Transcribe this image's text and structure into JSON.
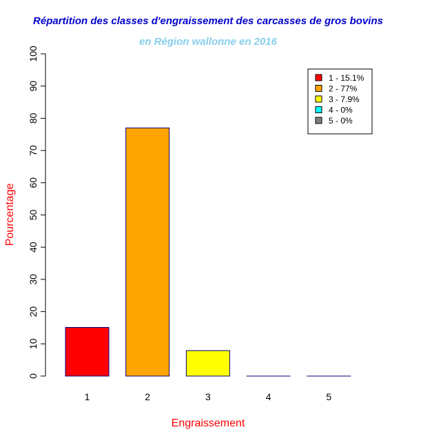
{
  "chart_data": {
    "type": "bar",
    "title": "Répartition des classes d'engraissement des carcasses de gros bovins",
    "subtitle": "en Région wallonne en 2016",
    "xlabel": "Engraissement",
    "ylabel": "Pourcentage",
    "categories": [
      "1",
      "2",
      "3",
      "4",
      "5"
    ],
    "values": [
      15.1,
      77,
      7.9,
      0,
      0
    ],
    "colors": [
      "#ff0000",
      "#ffa500",
      "#ffff00",
      "#00ffff",
      "#808080"
    ],
    "border_color": "#000080",
    "ylim": [
      0,
      100
    ],
    "yticks": [
      "0",
      "10",
      "20",
      "30",
      "40",
      "50",
      "60",
      "70",
      "80",
      "90",
      "100"
    ],
    "legend_position": "top-right",
    "legend": [
      "1 - 15.1%",
      "2 - 77%",
      "3 - 7.9%",
      "4 - 0%",
      "5 - 0%"
    ],
    "title_color": "#0000cd",
    "subtitle_color": "#87ceeb",
    "axis_label_color": "#ff0000"
  }
}
